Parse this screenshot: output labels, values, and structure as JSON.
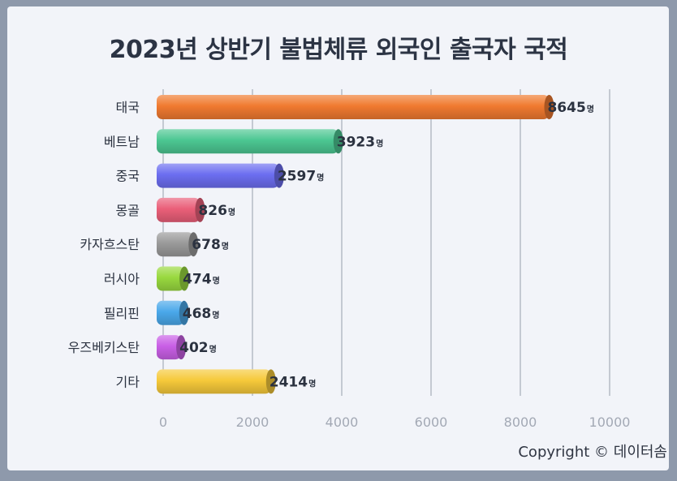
{
  "chart_data": {
    "type": "bar",
    "orientation": "horizontal",
    "title": "2023년 상반기 불법체류 외국인 출국자 국적",
    "categories": [
      "태국",
      "베트남",
      "중국",
      "몽골",
      "카자흐스탄",
      "러시아",
      "필리핀",
      "우즈베키스탄",
      "기타"
    ],
    "values": [
      8645,
      3923,
      2597,
      826,
      678,
      474,
      468,
      402,
      2414
    ],
    "unit": "명",
    "colors": [
      "#f07a30",
      "#4cc792",
      "#6c6ef0",
      "#ea5f79",
      "#9a9a9a",
      "#99d93f",
      "#4aa8ea",
      "#c95fe6",
      "#f6c93a"
    ],
    "xlim": [
      0,
      10000
    ],
    "xticks": [
      0,
      2000,
      4000,
      6000,
      8000,
      10000
    ],
    "grid": true
  },
  "footer": {
    "copyright": "Copyright © 데이터솜"
  }
}
